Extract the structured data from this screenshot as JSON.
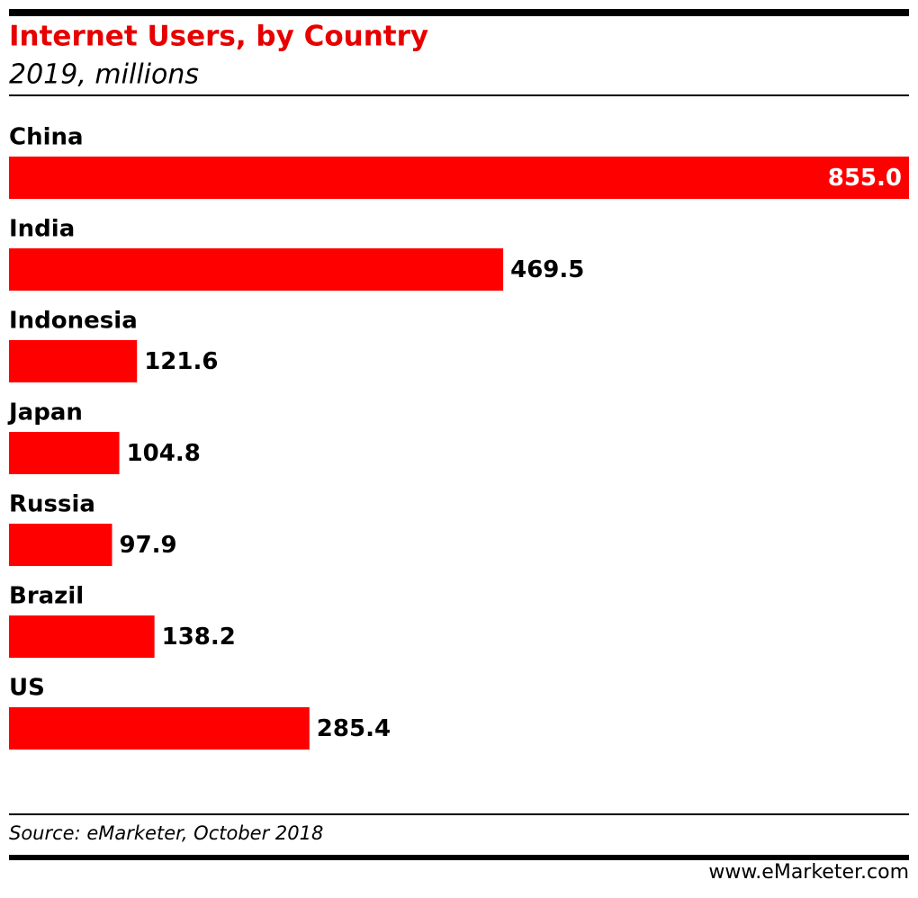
{
  "chart_data": {
    "type": "bar",
    "orientation": "horizontal",
    "title": "Internet Users, by Country",
    "subtitle": "2019, millions",
    "categories": [
      "China",
      "India",
      "Indonesia",
      "Japan",
      "Russia",
      "Brazil",
      "US"
    ],
    "values": [
      855.0,
      469.5,
      121.6,
      104.8,
      97.9,
      138.2,
      285.4
    ],
    "value_labels": [
      "855.0",
      "469.5",
      "121.6",
      "104.8",
      "97.9",
      "138.2",
      "285.4"
    ],
    "color": "#ff0000",
    "source": "Source: eMarketer, October 2018",
    "footer": "www.eMarketer.com"
  }
}
